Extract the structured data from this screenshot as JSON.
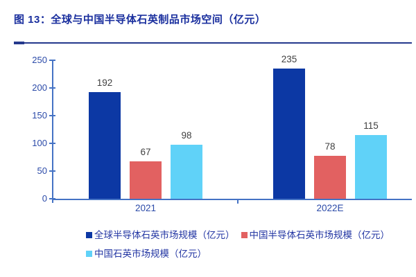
{
  "figure": {
    "title": "图 13：全球与中国半导体石英制品市场空间（亿元）"
  },
  "chart_data": {
    "type": "bar",
    "title": "图 13：全球与中国半导体石英制品市场空间（亿元）",
    "categories": [
      "2021",
      "2022E"
    ],
    "series": [
      {
        "name": "全球半导体石英市场规模（亿元）",
        "values": [
          192,
          235
        ],
        "color": "#0C38A4"
      },
      {
        "name": "中国半导体石英市场规模（亿元）",
        "values": [
          67,
          78
        ],
        "color": "#E26161"
      },
      {
        "name": "中国石英市场规模（亿元）",
        "values": [
          98,
          115
        ],
        "color": "#60D2F8"
      }
    ],
    "ylim": [
      0,
      250
    ],
    "yticks": [
      0,
      50,
      100,
      150,
      200,
      250
    ],
    "grid": false,
    "legend_position": "bottom",
    "colors": {
      "title": "#1A2F9E",
      "header_rule": "#24388C",
      "axis": "#4472C4",
      "tick_label": "#2B4AA8",
      "value_label": "#404040",
      "legend_text": "#2336A3"
    }
  }
}
